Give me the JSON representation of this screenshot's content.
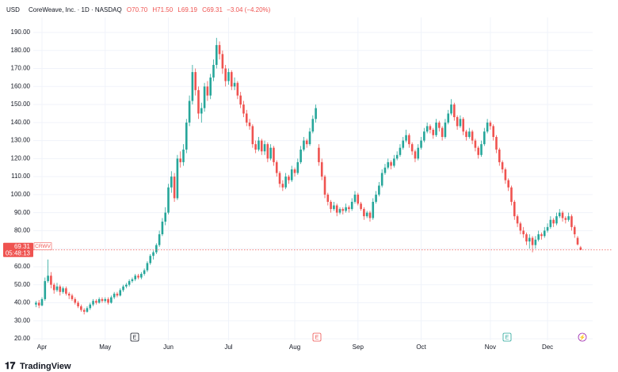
{
  "chart_data": {
    "type": "candlestick",
    "header": {
      "currency": "USD",
      "symbol": "CoreWeave, Inc. · 1D · NASDAQ",
      "open": "O70.70",
      "high": "H71.50",
      "low": "L69.19",
      "close": "C69.31",
      "change": "−3.04 (−4.20%)"
    },
    "ticker": "CRWV",
    "countdown": "05:48:13",
    "brand": "TradingView",
    "up_color": "#26a69a",
    "down_color": "#ef5350",
    "grid": true,
    "ylim": [
      20,
      190
    ],
    "yticks": [
      {
        "value": 20,
        "label": "20.00"
      },
      {
        "value": 30,
        "label": "30.00"
      },
      {
        "value": 40,
        "label": "40.00"
      },
      {
        "value": 50,
        "label": "50.00"
      },
      {
        "value": 60,
        "label": "60.00"
      },
      {
        "value": 70,
        "label": "70.00"
      },
      {
        "value": 80,
        "label": "80.00"
      },
      {
        "value": 90,
        "label": "90.00"
      },
      {
        "value": 100,
        "label": "100.00"
      },
      {
        "value": 110,
        "label": "110.00"
      },
      {
        "value": 120,
        "label": "120.00"
      },
      {
        "value": 130,
        "label": "130.00"
      },
      {
        "value": 140,
        "label": "140.00"
      },
      {
        "value": 150,
        "label": "150.00"
      },
      {
        "value": 160,
        "label": "160.00"
      },
      {
        "value": 170,
        "label": "170.00"
      },
      {
        "value": 180,
        "label": "180.00"
      },
      {
        "value": 190,
        "label": "190.00"
      }
    ],
    "events": [
      {
        "label": "E",
        "color": "#131722"
      },
      {
        "label": "E",
        "color": "#ef5350"
      },
      {
        "label": "E",
        "color": "#26a69a"
      },
      {
        "label": "⚡",
        "color": "#9c27b0"
      }
    ],
    "categories": [
      null,
      null,
      "Apr",
      null,
      null,
      null,
      null,
      null,
      null,
      null,
      null,
      null,
      null,
      null,
      null,
      null,
      null,
      null,
      null,
      null,
      null,
      null,
      null,
      "May",
      null,
      null,
      null,
      null,
      null,
      null,
      null,
      null,
      null,
      null,
      null,
      null,
      null,
      null,
      null,
      null,
      null,
      null,
      null,
      null,
      "Jun",
      null,
      null,
      null,
      null,
      null,
      null,
      null,
      null,
      null,
      null,
      null,
      null,
      null,
      null,
      null,
      null,
      null,
      null,
      null,
      "Jul",
      null,
      null,
      null,
      null,
      null,
      null,
      null,
      null,
      null,
      null,
      null,
      null,
      null,
      null,
      null,
      null,
      null,
      null,
      null,
      null,
      null,
      "Aug",
      null,
      null,
      null,
      null,
      null,
      null,
      null,
      null,
      null,
      null,
      null,
      null,
      null,
      null,
      null,
      null,
      null,
      null,
      null,
      null,
      "Sep",
      null,
      null,
      null,
      null,
      null,
      null,
      null,
      null,
      null,
      null,
      null,
      null,
      null,
      null,
      null,
      null,
      null,
      null,
      null,
      null,
      "Oct",
      null,
      null,
      null,
      null,
      null,
      null,
      null,
      null,
      null,
      null,
      null,
      null,
      null,
      null,
      null,
      null,
      null,
      null,
      null,
      null,
      null,
      null,
      "Nov",
      null,
      null,
      null,
      null,
      null,
      null,
      null,
      null,
      null,
      null,
      null,
      null,
      null,
      null,
      null,
      null,
      null,
      null,
      "Dec",
      null,
      null,
      null,
      null,
      null,
      null,
      null,
      null,
      null,
      null,
      null
    ],
    "candles": [
      [
        39,
        41,
        37.5,
        40
      ],
      [
        40,
        41.5,
        37,
        38.5
      ],
      [
        38.5,
        43,
        38,
        42
      ],
      [
        42,
        54,
        41,
        52
      ],
      [
        52,
        64,
        51,
        55
      ],
      [
        55,
        57,
        48,
        50
      ],
      [
        50,
        51,
        45,
        47
      ],
      [
        47,
        51,
        46,
        49
      ],
      [
        49,
        50,
        44,
        46
      ],
      [
        46,
        49,
        45,
        48
      ],
      [
        48,
        49,
        44,
        45
      ],
      [
        45,
        46,
        42,
        44
      ],
      [
        44,
        45,
        41,
        42
      ],
      [
        42,
        43,
        39,
        40
      ],
      [
        40,
        41,
        37,
        38
      ],
      [
        38,
        39,
        35,
        36
      ],
      [
        36,
        37,
        33.5,
        35
      ],
      [
        35,
        38,
        34.5,
        37
      ],
      [
        37,
        40,
        36,
        39
      ],
      [
        39,
        42,
        38,
        41
      ],
      [
        41,
        42,
        39,
        40
      ],
      [
        40,
        43,
        39.5,
        42
      ],
      [
        42,
        43,
        40,
        41
      ],
      [
        41,
        43,
        40,
        42
      ],
      [
        42,
        43,
        39,
        40
      ],
      [
        40,
        44,
        39.5,
        43
      ],
      [
        43,
        46,
        42,
        45
      ],
      [
        45,
        46,
        43,
        44
      ],
      [
        44,
        48,
        43.5,
        47
      ],
      [
        47,
        50,
        46,
        49
      ],
      [
        49,
        51,
        48,
        50
      ],
      [
        50,
        53,
        49,
        52
      ],
      [
        52,
        54,
        51,
        53
      ],
      [
        53,
        56,
        52,
        55
      ],
      [
        55,
        56,
        53,
        54
      ],
      [
        54,
        57,
        53,
        56
      ],
      [
        56,
        59,
        55,
        58
      ],
      [
        58,
        63,
        57,
        62
      ],
      [
        62,
        67,
        61,
        66
      ],
      [
        66,
        69,
        64,
        68
      ],
      [
        68,
        73,
        67,
        72
      ],
      [
        72,
        80,
        71,
        78
      ],
      [
        78,
        87,
        77,
        85
      ],
      [
        85,
        93,
        83,
        90
      ],
      [
        90,
        106,
        89,
        104
      ],
      [
        104,
        113,
        101,
        110
      ],
      [
        110,
        112,
        96,
        98
      ],
      [
        98,
        122,
        97,
        120
      ],
      [
        120,
        124,
        115,
        118
      ],
      [
        118,
        128,
        116,
        125
      ],
      [
        125,
        142,
        123,
        140
      ],
      [
        140,
        155,
        138,
        152
      ],
      [
        152,
        172,
        150,
        168
      ],
      [
        168,
        170,
        155,
        158
      ],
      [
        158,
        160,
        142,
        145
      ],
      [
        145,
        151,
        140,
        148
      ],
      [
        148,
        162,
        146,
        160
      ],
      [
        160,
        163,
        152,
        155
      ],
      [
        155,
        167,
        153,
        165
      ],
      [
        165,
        175,
        163,
        172
      ],
      [
        172,
        187,
        170,
        183
      ],
      [
        183,
        185,
        175,
        178
      ],
      [
        178,
        180,
        167,
        170
      ],
      [
        170,
        172,
        160,
        163
      ],
      [
        163,
        170,
        161,
        168
      ],
      [
        168,
        169,
        158,
        160
      ],
      [
        160,
        165,
        158,
        162
      ],
      [
        162,
        163,
        153,
        155
      ],
      [
        155,
        157,
        148,
        150
      ],
      [
        150,
        152,
        143,
        145
      ],
      [
        145,
        147,
        138,
        140
      ],
      [
        140,
        142,
        136,
        138
      ],
      [
        138,
        139,
        126,
        128
      ],
      [
        128,
        130,
        123,
        125
      ],
      [
        125,
        132,
        124,
        130
      ],
      [
        130,
        131,
        122,
        124
      ],
      [
        124,
        130,
        122,
        128
      ],
      [
        128,
        129,
        118,
        120
      ],
      [
        120,
        128,
        119,
        126
      ],
      [
        126,
        127,
        116,
        118
      ],
      [
        118,
        119,
        110,
        112
      ],
      [
        112,
        113,
        104,
        106
      ],
      [
        106,
        108,
        102,
        104
      ],
      [
        104,
        112,
        103,
        110
      ],
      [
        110,
        111,
        106,
        108
      ],
      [
        108,
        116,
        107,
        114
      ],
      [
        114,
        115,
        110,
        112
      ],
      [
        112,
        120,
        111,
        118
      ],
      [
        118,
        127,
        117,
        125
      ],
      [
        125,
        132,
        124,
        130
      ],
      [
        130,
        131,
        126,
        128
      ],
      [
        128,
        137,
        127,
        135
      ],
      [
        135,
        144,
        134,
        142
      ],
      [
        142,
        150,
        140,
        148
      ],
      [
        126,
        128,
        116,
        118
      ],
      [
        118,
        120,
        108,
        110
      ],
      [
        110,
        111,
        98,
        100
      ],
      [
        100,
        101,
        94,
        96
      ],
      [
        96,
        97,
        90,
        92
      ],
      [
        92,
        96,
        91,
        94
      ],
      [
        94,
        95,
        88,
        90
      ],
      [
        90,
        93,
        89,
        92
      ],
      [
        92,
        93,
        89,
        91
      ],
      [
        91,
        95,
        90,
        93
      ],
      [
        93,
        94,
        90,
        92
      ],
      [
        92,
        98,
        91,
        96
      ],
      [
        96,
        102,
        95,
        100
      ],
      [
        100,
        101,
        94,
        95
      ],
      [
        95,
        96,
        91,
        92
      ],
      [
        92,
        93,
        86,
        88
      ],
      [
        88,
        91,
        87,
        90
      ],
      [
        90,
        91,
        85,
        87
      ],
      [
        87,
        98,
        86,
        96
      ],
      [
        96,
        102,
        95,
        100
      ],
      [
        100,
        107,
        99,
        105
      ],
      [
        105,
        114,
        104,
        112
      ],
      [
        112,
        117,
        111,
        115
      ],
      [
        115,
        120,
        114,
        118
      ],
      [
        118,
        119,
        114,
        116
      ],
      [
        116,
        122,
        115,
        120
      ],
      [
        120,
        124,
        119,
        122
      ],
      [
        122,
        128,
        121,
        126
      ],
      [
        126,
        132,
        125,
        130
      ],
      [
        130,
        136,
        129,
        133
      ],
      [
        133,
        134,
        126,
        128
      ],
      [
        128,
        129,
        122,
        124
      ],
      [
        124,
        125,
        118,
        120
      ],
      [
        120,
        128,
        119,
        126
      ],
      [
        126,
        132,
        125,
        130
      ],
      [
        130,
        137,
        129,
        135
      ],
      [
        135,
        140,
        134,
        138
      ],
      [
        138,
        139,
        134,
        136
      ],
      [
        136,
        137,
        131,
        133
      ],
      [
        133,
        142,
        132,
        140
      ],
      [
        140,
        141,
        135,
        137
      ],
      [
        137,
        138,
        130,
        132
      ],
      [
        132,
        142,
        131,
        140
      ],
      [
        140,
        147,
        139,
        145
      ],
      [
        145,
        153,
        144,
        150
      ],
      [
        150,
        151,
        141,
        143
      ],
      [
        143,
        144,
        136,
        138
      ],
      [
        138,
        144,
        137,
        142
      ],
      [
        142,
        143,
        133,
        135
      ],
      [
        135,
        136,
        130,
        132
      ],
      [
        132,
        137,
        131,
        135
      ],
      [
        135,
        136,
        128,
        130
      ],
      [
        130,
        131,
        124,
        126
      ],
      [
        126,
        127,
        120,
        122
      ],
      [
        122,
        130,
        121,
        128
      ],
      [
        128,
        137,
        127,
        135
      ],
      [
        135,
        142,
        134,
        140
      ],
      [
        140,
        141,
        136,
        138
      ],
      [
        138,
        139,
        130,
        132
      ],
      [
        132,
        133,
        123,
        125
      ],
      [
        125,
        126,
        116,
        118
      ],
      [
        118,
        119,
        112,
        114
      ],
      [
        114,
        115,
        106,
        108
      ],
      [
        108,
        109,
        102,
        104
      ],
      [
        104,
        105,
        94,
        96
      ],
      [
        96,
        97,
        86,
        88
      ],
      [
        88,
        89,
        82,
        84
      ],
      [
        84,
        85,
        78,
        80
      ],
      [
        80,
        82,
        76,
        78
      ],
      [
        78,
        79,
        72,
        74
      ],
      [
        74,
        78,
        70,
        76
      ],
      [
        76,
        77,
        68,
        72
      ],
      [
        72,
        77,
        70,
        75
      ],
      [
        75,
        80,
        74,
        78
      ],
      [
        78,
        79,
        75,
        77
      ],
      [
        77,
        82,
        76,
        80
      ],
      [
        80,
        84,
        79,
        82
      ],
      [
        82,
        88,
        81,
        86
      ],
      [
        86,
        87,
        82,
        84
      ],
      [
        84,
        90,
        83,
        88
      ],
      [
        88,
        92,
        87,
        90
      ],
      [
        90,
        91,
        85,
        87
      ],
      [
        87,
        88,
        84,
        86
      ],
      [
        86,
        90,
        85,
        88
      ],
      [
        88,
        89,
        80,
        82
      ],
      [
        82,
        83,
        76,
        78
      ],
      [
        76,
        77,
        71.8,
        72.35
      ],
      [
        70.7,
        71.5,
        69.19,
        69.31
      ]
    ]
  }
}
